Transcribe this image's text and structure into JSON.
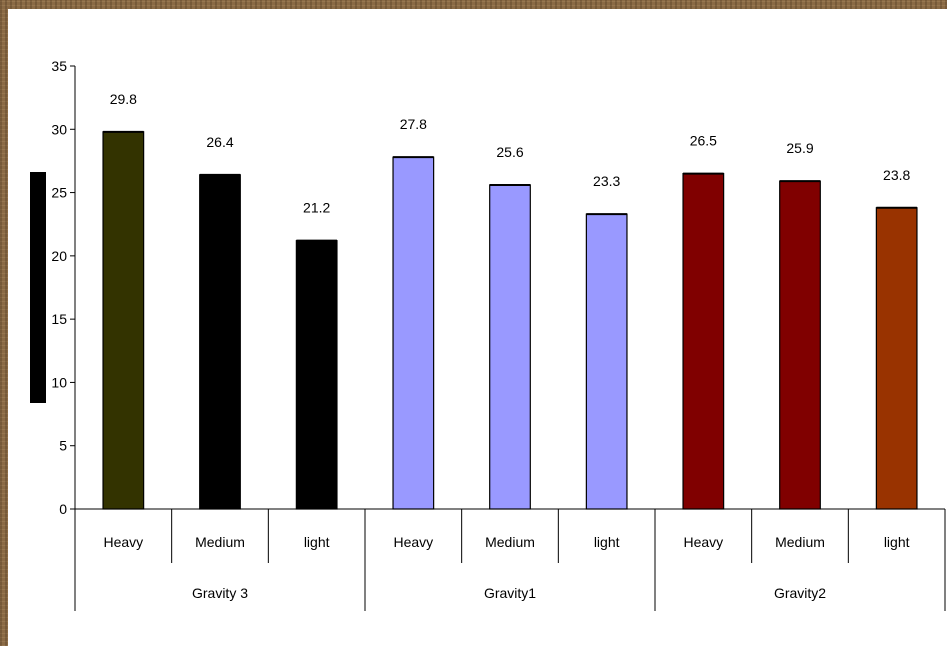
{
  "chart_data": {
    "type": "bar",
    "groups": [
      {
        "name": "Gravity 3",
        "categories": [
          "Heavy",
          "Medium",
          "light"
        ],
        "values": [
          29.8,
          26.4,
          21.2
        ],
        "colors": [
          "#333300",
          "#000000",
          "#000000"
        ]
      },
      {
        "name": "Gravity1",
        "categories": [
          "Heavy",
          "Medium",
          "light"
        ],
        "values": [
          27.8,
          25.6,
          23.3
        ],
        "colors": [
          "#9999ff",
          "#9999ff",
          "#9999ff"
        ]
      },
      {
        "name": "Gravity2",
        "categories": [
          "Heavy",
          "Medium",
          "light"
        ],
        "values": [
          26.5,
          25.9,
          23.8
        ],
        "colors": [
          "#800000",
          "#800000",
          "#993300"
        ]
      }
    ],
    "y_ticks": [
      "0",
      "5",
      "10",
      "15",
      "20",
      "25",
      "30",
      "35"
    ],
    "ylim": [
      0,
      35
    ],
    "data_labels": [
      "29.8",
      "26.4",
      "21.2",
      "27.8",
      "25.6",
      "23.3",
      "26.5",
      "25.9",
      "23.8"
    ],
    "title": "",
    "xlabel": "",
    "ylabel": "",
    "grid": false,
    "legend": "none"
  }
}
